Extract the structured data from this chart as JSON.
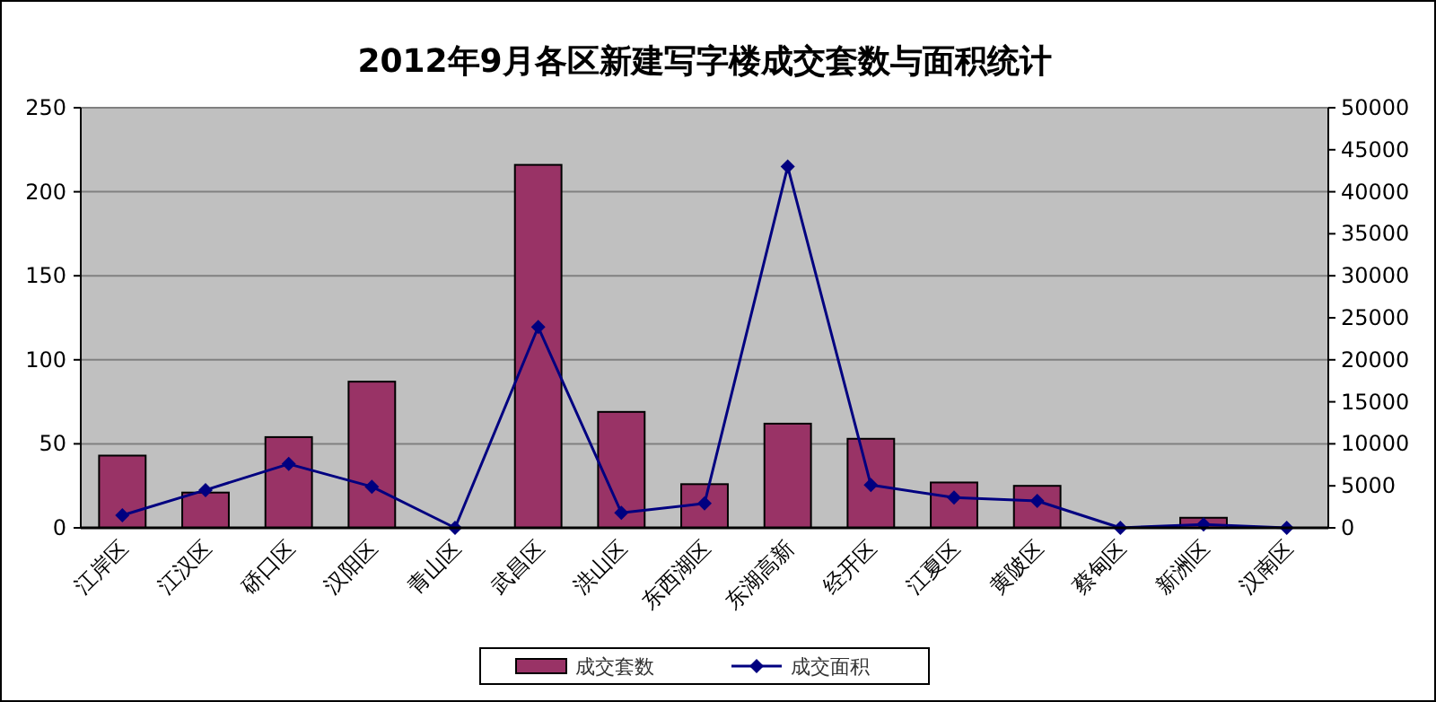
{
  "chart_data": {
    "type": "bar",
    "title": "2012年9月各区新建写字楼成交套数与面积统计",
    "categories": [
      "江岸区",
      "江汉区",
      "硚口区",
      "汉阳区",
      "青山区",
      "武昌区",
      "洪山区",
      "东西湖区",
      "东湖高新",
      "经开区",
      "江夏区",
      "黄陂区",
      "蔡甸区",
      "新洲区",
      "汉南区"
    ],
    "series": [
      {
        "name": "成交套数",
        "color": "#993366",
        "values": [
          43,
          21,
          54,
          87,
          0,
          216,
          69,
          26,
          62,
          53,
          27,
          25,
          0,
          6,
          0
        ]
      },
      {
        "name": "成交面积",
        "type": "line",
        "axis": "y2",
        "color": "#000080",
        "marker": "diamond",
        "values": [
          1500,
          4500,
          7600,
          4900,
          0,
          23900,
          1800,
          2900,
          43000,
          5100,
          3600,
          3200,
          0,
          400,
          0
        ]
      }
    ],
    "ylim": [
      0,
      250
    ],
    "yticks": [
      0,
      50,
      100,
      150,
      200,
      250
    ],
    "y2lim": [
      0,
      50000
    ],
    "y2ticks": [
      0,
      5000,
      10000,
      15000,
      20000,
      25000,
      30000,
      35000,
      40000,
      45000,
      50000
    ],
    "grid": "y",
    "legend": "bottom"
  }
}
